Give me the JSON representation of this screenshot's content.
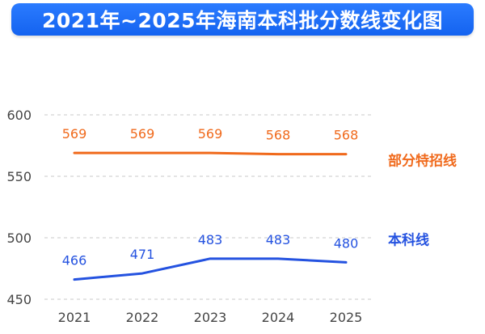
{
  "title": "2021年~2025年海南本科批分数线变化图",
  "chart_data": {
    "type": "line",
    "title": "2021年~2025年海南本科批分数线变化图",
    "categories": [
      "2021",
      "2022",
      "2023",
      "2024",
      "2025"
    ],
    "y_ticks": [
      "600",
      "550",
      "500",
      "450"
    ],
    "ylim": [
      450,
      600
    ],
    "grid": true,
    "series": [
      {
        "name": "部分特招线",
        "values": [
          569,
          569,
          569,
          568,
          568
        ],
        "labels": [
          "569",
          "569",
          "569",
          "568",
          "568"
        ],
        "color": "#f06a1c"
      },
      {
        "name": "本科线",
        "values": [
          466,
          471,
          483,
          483,
          480
        ],
        "labels": [
          "466",
          "471",
          "483",
          "483",
          "480"
        ],
        "color": "#2452e0"
      }
    ]
  }
}
